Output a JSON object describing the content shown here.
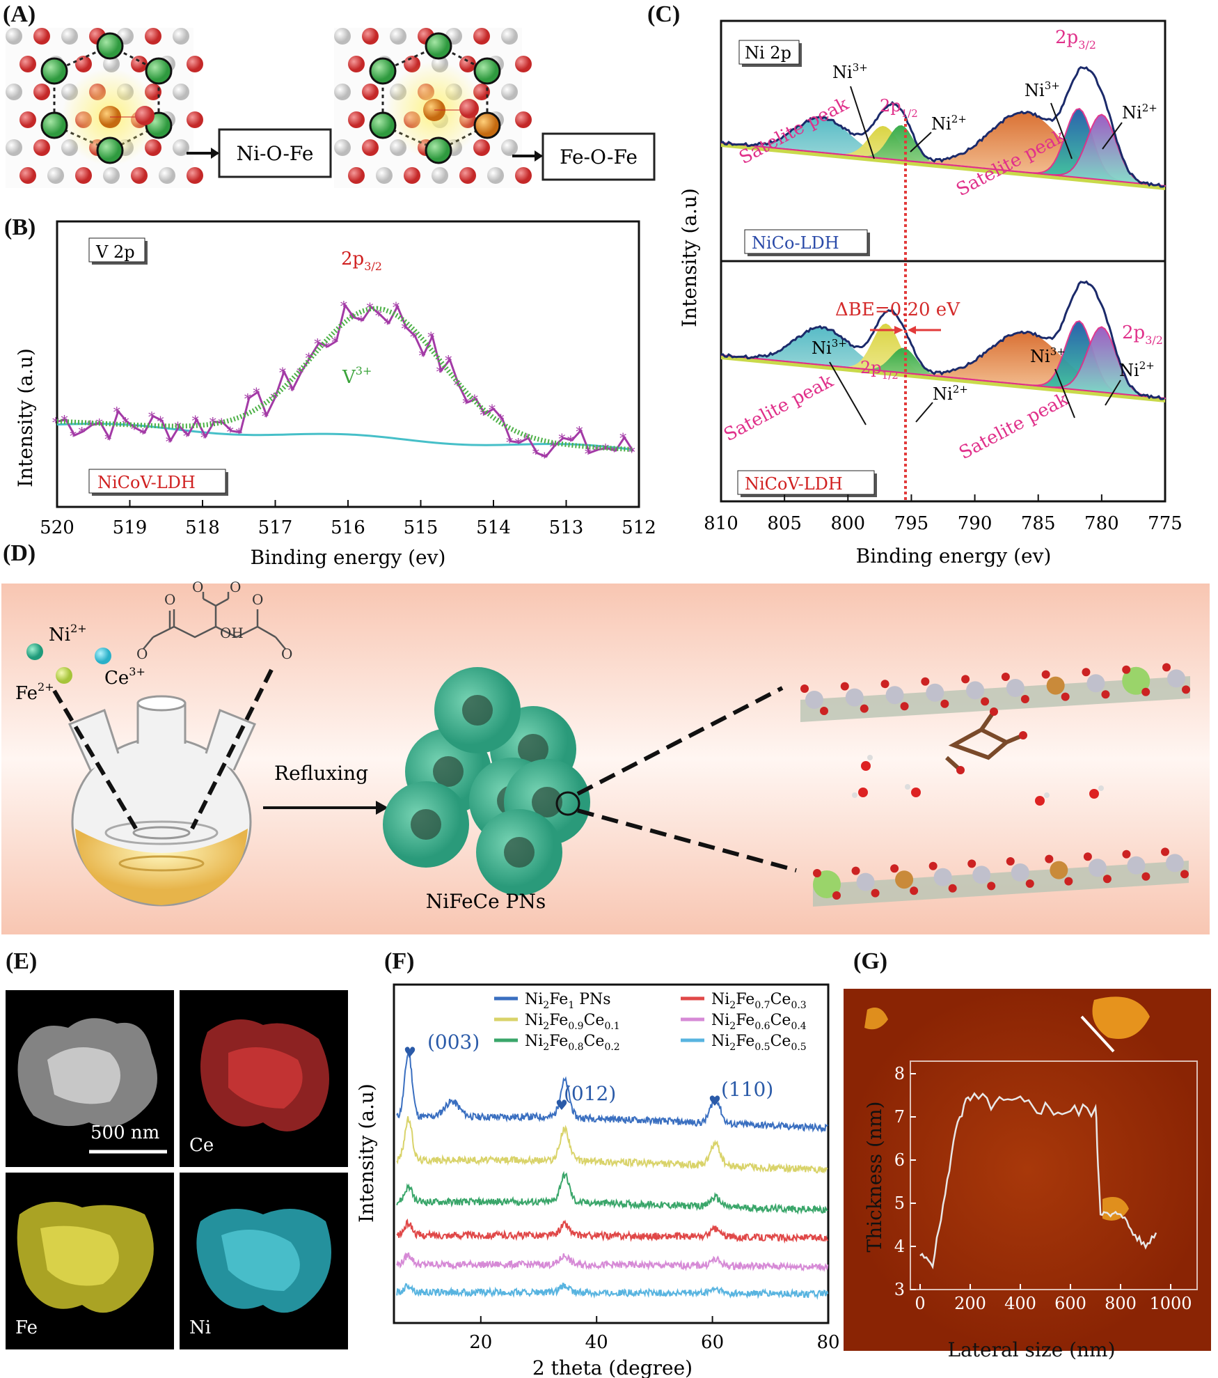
{
  "labels": {
    "a": "(A)",
    "b": "(B)",
    "c": "(C)",
    "d": "(D)",
    "e": "(E)",
    "f": "(F)",
    "g": "(G)"
  },
  "panel_a": {
    "box_left": "Ni-O-Fe",
    "box_right": "Fe-O-Fe"
  },
  "panel_b": {
    "tag": "V 2p",
    "peak": "2p3/2",
    "species": "V3+",
    "sample": "NiCoV-LDH",
    "xlabel": "Binding energy (ev)",
    "ylabel": "Intensity (a.u)",
    "xticks": [
      "520",
      "519",
      "518",
      "517",
      "516",
      "515",
      "514",
      "513",
      "512"
    ]
  },
  "panel_c": {
    "tag": "Ni 2p",
    "ylabel": "Intensity (a.u)",
    "xlabel": "Binding energy (ev)",
    "xticks": [
      "810",
      "805",
      "800",
      "795",
      "790",
      "785",
      "780",
      "775"
    ],
    "top_sample": "NiCo-LDH",
    "bottom_sample": "NiCoV-LDH",
    "satellite": "Satelite peak",
    "ni3": "Ni3+",
    "ni2": "Ni2+",
    "p12": "2p1/2",
    "p32": "2p3/2",
    "delta": "ΔBE=0.20 eV"
  },
  "panel_d": {
    "ni": "Ni2+",
    "fe": "Fe2+",
    "ce": "Ce3+",
    "oh": "OH",
    "arrow": "Refluxing",
    "product": "NiFeCe PNs"
  },
  "panel_e": {
    "scale": "500 nm",
    "ce": "Ce",
    "fe": "Fe",
    "ni": "Ni"
  },
  "panel_f": {
    "xlabel": "2 theta (degree)",
    "ylabel": "Intensity (a.u)",
    "xticks": [
      "20",
      "40",
      "60",
      "80"
    ],
    "peaks": [
      "(003)",
      "(012)",
      "(110)"
    ],
    "legend": [
      "Ni2Fe1 PNs",
      "Ni2Fe0.9Ce0.1",
      "Ni2Fe0.8Ce0.2",
      "Ni2Fe0.7Ce0.3",
      "Ni2Fe0.6Ce0.4",
      "Ni2Fe0.5Ce0.5"
    ],
    "colors": [
      "#3a6fc0",
      "#d9d36a",
      "#3aa66a",
      "#e04848",
      "#d68ad6",
      "#58b4e0"
    ]
  },
  "panel_g": {
    "xlabel": "Lateral size (nm)",
    "ylabel": "Thickness (nm)",
    "xticks": [
      "0",
      "200",
      "400",
      "600",
      "800",
      "1000"
    ],
    "yticks": [
      "3",
      "4",
      "5",
      "6",
      "7",
      "8"
    ]
  },
  "chart_data": [
    {
      "type": "line",
      "title": "V 2p",
      "xlabel": "Binding energy (ev)",
      "ylabel": "Intensity (a.u)",
      "xlim": [
        520,
        512
      ],
      "series": [
        {
          "name": "V3+",
          "x": [
            520,
            519,
            518,
            517,
            516,
            515.6,
            515,
            514,
            513,
            512
          ],
          "y": [
            0.3,
            0.31,
            0.34,
            0.45,
            0.7,
            0.75,
            0.68,
            0.42,
            0.25,
            0.2
          ]
        }
      ]
    },
    {
      "type": "line",
      "title": "Ni 2p",
      "xlabel": "Binding energy (ev)",
      "ylabel": "Intensity (a.u)",
      "xlim": [
        810,
        775
      ],
      "series": [
        {
          "name": "NiCo-LDH",
          "x": [
            810,
            802,
            796.5,
            792,
            786,
            781,
            779,
            775
          ],
          "y": [
            0.2,
            0.32,
            0.55,
            0.25,
            0.55,
            0.95,
            0.6,
            0.05
          ]
        },
        {
          "name": "NiCoV-LDH",
          "x": [
            810,
            802,
            796.3,
            792,
            786,
            781,
            779,
            775
          ],
          "y": [
            0.2,
            0.32,
            0.45,
            0.22,
            0.55,
            0.9,
            0.58,
            0.05
          ]
        }
      ]
    },
    {
      "type": "line",
      "xlabel": "2 theta (degree)",
      "ylabel": "Intensity (a.u)",
      "xlim": [
        5,
        80
      ],
      "series": [
        {
          "name": "Ni2Fe1 PNs",
          "x": [
            5,
            8,
            10,
            15,
            20,
            30,
            34,
            40,
            50,
            60,
            62,
            70,
            80
          ],
          "y": [
            5.0,
            8.0,
            5.1,
            6.0,
            5.0,
            5.1,
            7.5,
            6.5,
            5.6,
            6.8,
            5.6,
            5.4,
            5.1
          ]
        }
      ]
    },
    {
      "type": "line",
      "xlabel": "Lateral size (nm)",
      "ylabel": "Thickness (nm)",
      "xlim": [
        0,
        1000
      ],
      "ylim": [
        3,
        8
      ],
      "series": [
        {
          "x": [
            0,
            50,
            100,
            150,
            200,
            300,
            400,
            500,
            600,
            700,
            720,
            760,
            800,
            850,
            900,
            950
          ],
          "y": [
            3.8,
            3.6,
            5.2,
            7.0,
            7.4,
            7.3,
            7.3,
            7.2,
            7.1,
            7.2,
            4.8,
            4.7,
            4.8,
            4.3,
            4.0,
            4.4
          ]
        }
      ]
    }
  ]
}
